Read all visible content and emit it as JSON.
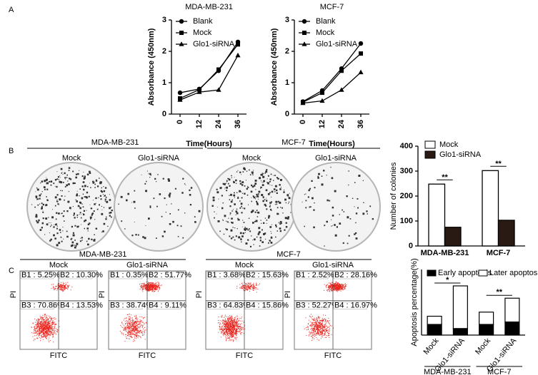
{
  "panel_labels": [
    "A",
    "B",
    "C"
  ],
  "chart_data": [
    {
      "type": "line",
      "title": "MDA-MB-231",
      "x_label": "Time(Hours)",
      "y_label": "Absorbance (450nm)",
      "categories": [
        "0",
        "12",
        "24",
        "36"
      ],
      "ylim": [
        0,
        3
      ],
      "yticks": [
        0,
        1,
        2,
        3
      ],
      "series": [
        {
          "name": "Blank",
          "marker": "circle",
          "color": "#000000",
          "values": [
            0.68,
            0.8,
            1.38,
            2.3
          ]
        },
        {
          "name": "Mock",
          "marker": "square",
          "color": "#000000",
          "values": [
            0.5,
            0.78,
            1.42,
            2.22
          ]
        },
        {
          "name": "Glo1-siRNA",
          "marker": "triangle",
          "color": "#000000",
          "values": [
            0.45,
            0.7,
            0.77,
            1.87
          ]
        }
      ]
    },
    {
      "type": "line",
      "title": "MCF-7",
      "x_label": "Time(Hours)",
      "y_label": "Absorbance (450nm)",
      "categories": [
        "0",
        "12",
        "24",
        "36"
      ],
      "ylim": [
        0,
        3
      ],
      "yticks": [
        0,
        1,
        2,
        3
      ],
      "series": [
        {
          "name": "Blank",
          "marker": "circle",
          "color": "#000000",
          "values": [
            0.4,
            0.75,
            1.45,
            2.25
          ]
        },
        {
          "name": "Mock",
          "marker": "square",
          "color": "#000000",
          "values": [
            0.38,
            0.68,
            1.38,
            1.93
          ]
        },
        {
          "name": "Glo1-siRNA",
          "marker": "triangle",
          "color": "#000000",
          "values": [
            0.35,
            0.42,
            0.77,
            1.33
          ]
        }
      ]
    },
    {
      "type": "bar",
      "y_label": "Number of colonies",
      "categories": [
        "MDA-MB-231",
        "MCF-7"
      ],
      "ylim": [
        0,
        400
      ],
      "yticks": [
        0,
        100,
        200,
        300,
        400
      ],
      "annotations": [
        "**",
        "**"
      ],
      "series": [
        {
          "name": "Mock",
          "color": "#ffffff",
          "values": [
            248,
            302
          ]
        },
        {
          "name": "Glo1-siRNA",
          "color": "#2a1a14",
          "values": [
            75,
            103
          ]
        }
      ]
    },
    {
      "type": "stacked_bar",
      "y_label": "Apoptosis percentage(%)",
      "categories": [
        "Mock",
        "Glo1-siRNA",
        "Mock",
        "Glo1-siRNA"
      ],
      "groups": [
        "MDA-MB-231",
        "MCF-7"
      ],
      "ylim": [
        0,
        80
      ],
      "annotations": [
        "*",
        "**"
      ],
      "series": [
        {
          "name": "Early apoptosis",
          "color": "#000000",
          "values": [
            13,
            8,
            13,
            16
          ]
        },
        {
          "name": "Later apoptosis",
          "color": "#ffffff",
          "values": [
            10,
            52,
            15,
            29
          ]
        }
      ]
    }
  ],
  "colony": {
    "groups": [
      {
        "title": "MDA-MB-231",
        "items": [
          "Mock",
          "Glo1-siRNA"
        ]
      },
      {
        "title": "MCF-7",
        "items": [
          "Mock",
          "Glo1-siRNA"
        ]
      }
    ]
  },
  "flow": {
    "x_label": "FITC",
    "y_label": "PI",
    "groups": [
      {
        "title": "MDA-MB-231",
        "plots": [
          {
            "label": "Mock",
            "quadrants": [
              "B1 : 5.25%",
              "B2 : 10.30%",
              "B3 : 70.86%",
              "B4 : 13.53%"
            ]
          },
          {
            "label": "Glo1-siRNA",
            "quadrants": [
              "B1 : 0.35%",
              "B2 : 51.77%",
              "B3 : 38.74%",
              "B4 : 9.11%"
            ]
          }
        ]
      },
      {
        "title": "MCF-7",
        "plots": [
          {
            "label": "Mock",
            "quadrants": [
              "B1 : 3.68%",
              "B2 : 15.63%",
              "B3 : 64.83%",
              "B4 : 15.86%"
            ]
          },
          {
            "label": "Glo1-siRNA",
            "quadrants": [
              "B1 : 2.52%",
              "B2 : 28.16%",
              "B3 : 52.27%",
              "B4 : 16.97%"
            ]
          }
        ]
      }
    ]
  }
}
